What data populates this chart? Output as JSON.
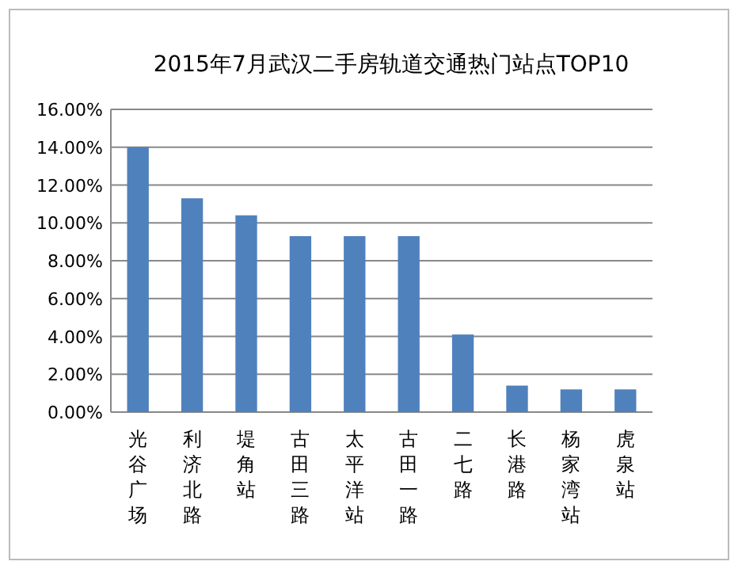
{
  "chart_data": {
    "type": "bar",
    "title": "2015年7月武汉二手房轨道交通热门站点TOP10",
    "categories": [
      "光谷广场",
      "利济北路",
      "堤角站",
      "古田三路",
      "太平洋站",
      "古田一路",
      "二七路",
      "长港路",
      "杨家湾站",
      "虎泉站"
    ],
    "values": [
      14.0,
      11.3,
      10.4,
      9.3,
      9.3,
      9.3,
      4.1,
      1.4,
      1.2,
      1.2
    ],
    "color": "#4f81bd",
    "ylim": [
      0,
      16
    ],
    "yticks": [
      {
        "value": 0,
        "label": "0.00%"
      },
      {
        "value": 2,
        "label": "2.00%"
      },
      {
        "value": 4,
        "label": "4.00%"
      },
      {
        "value": 6,
        "label": "6.00%"
      },
      {
        "value": 8,
        "label": "8.00%"
      },
      {
        "value": 10,
        "label": "10.00%"
      },
      {
        "value": 12,
        "label": "12.00%"
      },
      {
        "value": 14,
        "label": "14.00%"
      },
      {
        "value": 16,
        "label": "16.00%"
      }
    ],
    "grid": "y"
  }
}
